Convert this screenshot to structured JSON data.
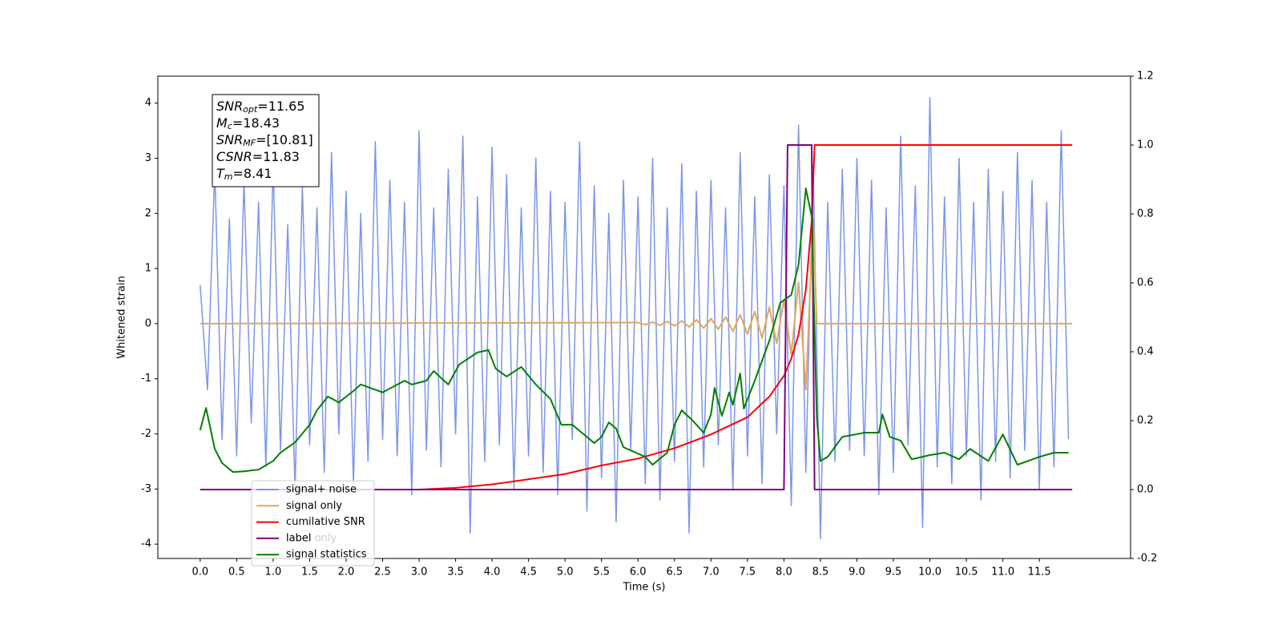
{
  "chart_data": {
    "type": "line",
    "xlabel": "Time (s)",
    "ylabel": "Whitened strain",
    "xlim": [
      -0.58,
      12.75
    ],
    "ylim": [
      -4.26,
      4.49
    ],
    "y2lim": [
      -0.2,
      1.2
    ],
    "xticks": [
      {
        "value": 0,
        "label": "0.0"
      },
      0.5,
      {
        "value": 1,
        "label": "1.0"
      },
      1.5,
      {
        "value": 2,
        "label": "2.0"
      },
      2.5,
      {
        "value": 3,
        "label": "3.0"
      },
      3.5,
      {
        "value": 4,
        "label": "4.0"
      },
      4.5,
      {
        "value": 5,
        "label": "5.0"
      },
      5.5,
      {
        "value": 6,
        "label": "6.0"
      },
      6.5,
      {
        "value": 7,
        "label": "7.0"
      },
      7.5,
      {
        "value": 8,
        "label": "8.0"
      },
      8.5,
      {
        "value": 9,
        "label": "9.0"
      },
      9.5,
      {
        "value": 10,
        "label": "10.0"
      },
      10.5,
      {
        "value": 11,
        "label": "11.0"
      },
      11.5
    ],
    "yticks": [
      -4,
      -3,
      -2,
      -1,
      0,
      1,
      2,
      3,
      4
    ],
    "y2ticks": [
      -0.2,
      {
        "value": 0,
        "label": "0.0"
      },
      0.2,
      0.4,
      0.6,
      0.8,
      {
        "value": 1,
        "label": "1.0"
      },
      1.2
    ],
    "grid": false,
    "legend_position": "lower left",
    "legend_hidden_text": "label only",
    "annotation_lines": [
      {
        "symbol": "SNR",
        "subscript": "opt",
        "text": "=11.65"
      },
      {
        "symbol": "M",
        "subscript": "c",
        "text": "=18.43"
      },
      {
        "symbol": "SNR",
        "subscript": "MF",
        "text": "=[10.81]"
      },
      {
        "symbol": "CSNR",
        "text": "=11.83"
      },
      {
        "symbol": "T",
        "subscript": "m",
        "text": "=8.41"
      }
    ],
    "series": [
      {
        "name": "signal+ noise",
        "color": "#7b96e8",
        "x": [
          0,
          0.1,
          0.2,
          0.3,
          0.4,
          0.5,
          0.6,
          0.7,
          0.8,
          0.9,
          1,
          1.1,
          1.2,
          1.3,
          1.4,
          1.5,
          1.6,
          1.7,
          1.8,
          1.9,
          2,
          2.1,
          2.2,
          2.3,
          2.4,
          2.5,
          2.6,
          2.7,
          2.8,
          2.9,
          3,
          3.1,
          3.2,
          3.3,
          3.4,
          3.5,
          3.6,
          3.7,
          3.8,
          3.9,
          4,
          4.1,
          4.2,
          4.3,
          4.4,
          4.5,
          4.6,
          4.7,
          4.8,
          4.9,
          5,
          5.1,
          5.2,
          5.3,
          5.4,
          5.5,
          5.6,
          5.7,
          5.8,
          5.9,
          6,
          6.1,
          6.2,
          6.3,
          6.4,
          6.5,
          6.6,
          6.7,
          6.8,
          6.9,
          7,
          7.1,
          7.2,
          7.3,
          7.4,
          7.5,
          7.6,
          7.7,
          7.8,
          7.9,
          8,
          8.1,
          8.2,
          8.3,
          8.4,
          8.5,
          8.6,
          8.7,
          8.8,
          8.9,
          9,
          9.1,
          9.2,
          9.3,
          9.4,
          9.5,
          9.6,
          9.7,
          9.8,
          9.9,
          10,
          10.1,
          10.2,
          10.3,
          10.4,
          10.5,
          10.6,
          10.7,
          10.8,
          10.9,
          11,
          11.1,
          11.2,
          11.3,
          11.4,
          11.5,
          11.6,
          11.7,
          11.8,
          11.9
        ],
        "values": [
          0.7,
          -1.2,
          2.8,
          -2.1,
          1.9,
          -2.4,
          2.6,
          -1.8,
          2.2,
          -2.6,
          2.9,
          -2.3,
          1.8,
          -3.0,
          2.5,
          -2.2,
          2.1,
          -2.7,
          3.1,
          -2.0,
          2.4,
          -2.9,
          2.0,
          -2.5,
          3.3,
          -2.1,
          2.6,
          -2.4,
          2.2,
          -3.1,
          3.5,
          -2.3,
          2.1,
          -2.6,
          2.8,
          -2.0,
          3.4,
          -3.8,
          2.3,
          -2.5,
          3.2,
          -2.2,
          2.7,
          -3.0,
          2.1,
          -2.4,
          3.0,
          -2.7,
          2.4,
          -3.1,
          2.2,
          -2.1,
          3.3,
          -3.4,
          2.5,
          -2.8,
          2.0,
          -3.6,
          2.6,
          -2.3,
          2.3,
          -2.9,
          3.0,
          -3.2,
          2.1,
          -2.5,
          2.9,
          -3.8,
          2.4,
          -2.6,
          2.6,
          -2.2,
          2.1,
          -3.0,
          3.1,
          -2.4,
          2.3,
          -2.9,
          2.7,
          -2.0,
          2.5,
          -3.3,
          3.6,
          -2.7,
          2.9,
          -3.9,
          2.2,
          -2.5,
          2.8,
          -2.3,
          3.0,
          -2.4,
          2.6,
          -3.1,
          2.1,
          -2.7,
          3.4,
          -2.2,
          2.5,
          -3.7,
          4.1,
          -2.6,
          2.3,
          -2.9,
          3.0,
          -2.4,
          2.2,
          -3.2,
          2.8,
          -2.5,
          2.4,
          -2.8,
          3.1,
          -2.3,
          2.6,
          -3.0,
          2.2,
          -2.6,
          3.5,
          -2.1
        ]
      },
      {
        "name": "signal only",
        "color": "#e0a860",
        "x": [
          0,
          6.0,
          6.1,
          6.2,
          6.3,
          6.4,
          6.5,
          6.6,
          6.7,
          6.8,
          6.9,
          7.0,
          7.1,
          7.2,
          7.3,
          7.4,
          7.5,
          7.6,
          7.7,
          7.8,
          7.9,
          8.0,
          8.1,
          8.2,
          8.3,
          8.4,
          8.45,
          11.95
        ],
        "values": [
          0,
          0.02,
          -0.02,
          0.03,
          -0.03,
          0.04,
          -0.04,
          0.05,
          -0.06,
          0.07,
          -0.08,
          0.09,
          -0.1,
          0.12,
          -0.14,
          0.16,
          -0.19,
          0.22,
          -0.26,
          0.3,
          -0.36,
          0.44,
          -0.56,
          0.75,
          -1.2,
          1.9,
          0,
          0
        ]
      },
      {
        "name": "cumilative SNR",
        "color": "#ff0000",
        "axis": "y2",
        "x": [
          0,
          3.0,
          3.5,
          4.0,
          4.5,
          5.0,
          5.5,
          6.0,
          6.5,
          7.0,
          7.5,
          7.8,
          8.0,
          8.1,
          8.2,
          8.3,
          8.38,
          8.42,
          11.95
        ],
        "values": [
          0,
          0,
          0.005,
          0.015,
          0.03,
          0.045,
          0.07,
          0.09,
          0.12,
          0.16,
          0.21,
          0.27,
          0.33,
          0.38,
          0.45,
          0.58,
          0.78,
          1.0,
          1.0
        ]
      },
      {
        "name": "label",
        "color": "#800080",
        "axis": "y2",
        "x": [
          0,
          8.0,
          8.05,
          8.38,
          8.42,
          11.95
        ],
        "values": [
          0,
          0,
          1,
          1,
          0,
          0
        ]
      },
      {
        "name": "signal statistics",
        "color": "#008000",
        "axis": "y2",
        "x": [
          0,
          0.08,
          0.2,
          0.3,
          0.45,
          0.6,
          0.8,
          1.0,
          1.1,
          1.3,
          1.5,
          1.6,
          1.75,
          1.9,
          2.1,
          2.2,
          2.5,
          2.8,
          2.9,
          3.1,
          3.2,
          3.4,
          3.55,
          3.8,
          3.95,
          4.05,
          4.2,
          4.4,
          4.6,
          4.8,
          4.95,
          5.1,
          5.4,
          5.5,
          5.6,
          5.7,
          5.8,
          6.1,
          6.2,
          6.4,
          6.5,
          6.6,
          6.75,
          6.9,
          7.0,
          7.05,
          7.15,
          7.25,
          7.3,
          7.4,
          7.45,
          7.6,
          7.8,
          7.95,
          8.1,
          8.2,
          8.3,
          8.38,
          8.45,
          8.5,
          8.6,
          8.8,
          9.1,
          9.3,
          9.35,
          9.45,
          9.6,
          9.75,
          10.0,
          10.2,
          10.4,
          10.55,
          10.8,
          11.0,
          11.2,
          11.5,
          11.7,
          11.9
        ],
        "values": [
          0.172,
          0.237,
          0.118,
          0.077,
          0.051,
          0.053,
          0.058,
          0.083,
          0.107,
          0.137,
          0.188,
          0.23,
          0.27,
          0.253,
          0.286,
          0.305,
          0.282,
          0.316,
          0.305,
          0.316,
          0.344,
          0.305,
          0.363,
          0.398,
          0.405,
          0.351,
          0.328,
          0.356,
          0.305,
          0.263,
          0.188,
          0.188,
          0.135,
          0.153,
          0.195,
          0.177,
          0.123,
          0.095,
          0.072,
          0.107,
          0.188,
          0.23,
          0.2,
          0.165,
          0.218,
          0.295,
          0.214,
          0.282,
          0.246,
          0.337,
          0.235,
          0.316,
          0.432,
          0.542,
          0.565,
          0.653,
          0.874,
          0.793,
          0.211,
          0.083,
          0.095,
          0.153,
          0.165,
          0.165,
          0.218,
          0.153,
          0.142,
          0.088,
          0.1,
          0.107,
          0.088,
          0.118,
          0.083,
          0.16,
          0.072,
          0.095,
          0.107,
          0.107
        ]
      }
    ]
  }
}
